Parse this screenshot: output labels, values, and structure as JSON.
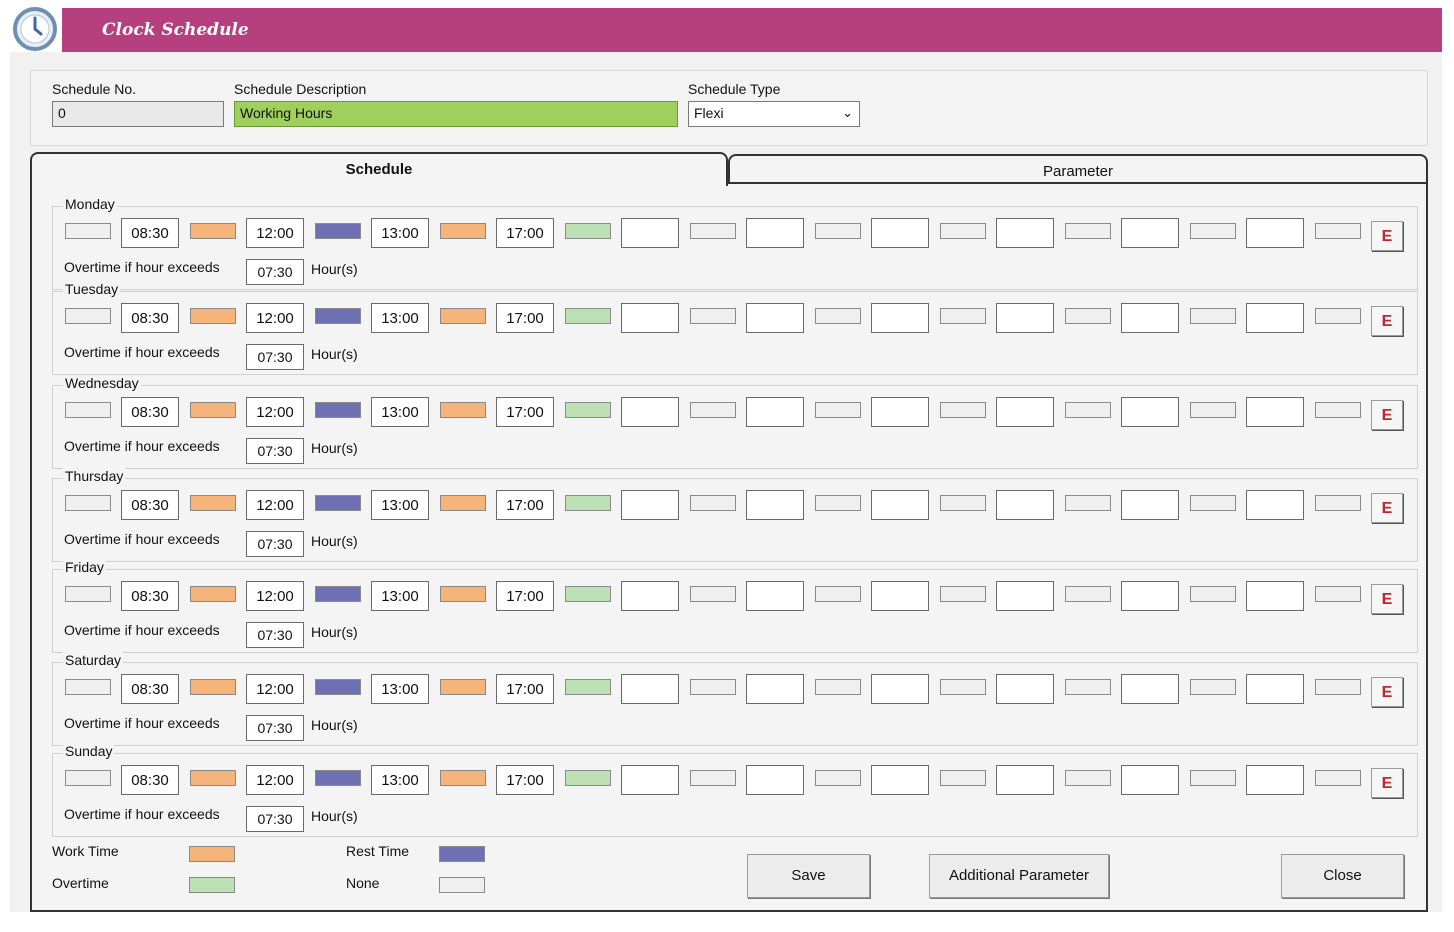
{
  "window": {
    "title": "Clock Schedule",
    "icon": "clock-icon",
    "titlebar_color": "#b63f80"
  },
  "header": {
    "schedule_no": {
      "label": "Schedule No.",
      "value": "0"
    },
    "schedule_description": {
      "label": "Schedule Description",
      "value": "Working Hours"
    },
    "schedule_type": {
      "label": "Schedule Type",
      "value": "Flexi"
    }
  },
  "tabs": [
    {
      "label": "Schedule",
      "active": true
    },
    {
      "label": "Parameter",
      "active": false
    }
  ],
  "days": [
    {
      "name": "Monday",
      "times": [
        "08:30",
        "12:00",
        "13:00",
        "17:00",
        "",
        "",
        "",
        "",
        "",
        ""
      ],
      "overtime_label": "Overtime if hour exceeds",
      "overtime_value": "07:30",
      "overtime_unit": "Hour(s)",
      "e_label": "E"
    },
    {
      "name": "Tuesday",
      "times": [
        "08:30",
        "12:00",
        "13:00",
        "17:00",
        "",
        "",
        "",
        "",
        "",
        ""
      ],
      "overtime_label": "Overtime if hour exceeds",
      "overtime_value": "07:30",
      "overtime_unit": "Hour(s)",
      "e_label": "E"
    },
    {
      "name": "Wednesday",
      "times": [
        "08:30",
        "12:00",
        "13:00",
        "17:00",
        "",
        "",
        "",
        "",
        "",
        ""
      ],
      "overtime_label": "Overtime if hour exceeds",
      "overtime_value": "07:30",
      "overtime_unit": "Hour(s)",
      "e_label": "E"
    },
    {
      "name": "Thursday",
      "times": [
        "08:30",
        "12:00",
        "13:00",
        "17:00",
        "",
        "",
        "",
        "",
        "",
        ""
      ],
      "overtime_label": "Overtime if hour exceeds",
      "overtime_value": "07:30",
      "overtime_unit": "Hour(s)",
      "e_label": "E"
    },
    {
      "name": "Friday",
      "times": [
        "08:30",
        "12:00",
        "13:00",
        "17:00",
        "",
        "",
        "",
        "",
        "",
        ""
      ],
      "overtime_label": "Overtime if hour exceeds",
      "overtime_value": "07:30",
      "overtime_unit": "Hour(s)",
      "e_label": "E"
    },
    {
      "name": "Saturday",
      "times": [
        "08:30",
        "12:00",
        "13:00",
        "17:00",
        "",
        "",
        "",
        "",
        "",
        ""
      ],
      "overtime_label": "Overtime if hour exceeds",
      "overtime_value": "07:30",
      "overtime_unit": "Hour(s)",
      "e_label": "E"
    },
    {
      "name": "Sunday",
      "times": [
        "08:30",
        "12:00",
        "13:00",
        "17:00",
        "",
        "",
        "",
        "",
        "",
        ""
      ],
      "overtime_label": "Overtime if hour exceeds",
      "overtime_value": "07:30",
      "overtime_unit": "Hour(s)",
      "e_label": "E"
    }
  ],
  "segment_types": [
    "none",
    "work",
    "rest",
    "work",
    "overtime",
    "none",
    "none",
    "none",
    "none",
    "none",
    "none"
  ],
  "legend": [
    {
      "label": "Work Time",
      "type": "work"
    },
    {
      "label": "Rest Time",
      "type": "rest"
    },
    {
      "label": "Overtime",
      "type": "overtime"
    },
    {
      "label": "None",
      "type": "none"
    }
  ],
  "colors": {
    "work": "#f5b47a",
    "rest": "#6f6fb3",
    "overtime": "#bde0b5",
    "none": "#efefef",
    "e_button": "#c0262c",
    "description_highlight": "#9fcf5c"
  },
  "buttons": {
    "save": "Save",
    "additional_parameter": "Additional Parameter",
    "close": "Close"
  }
}
